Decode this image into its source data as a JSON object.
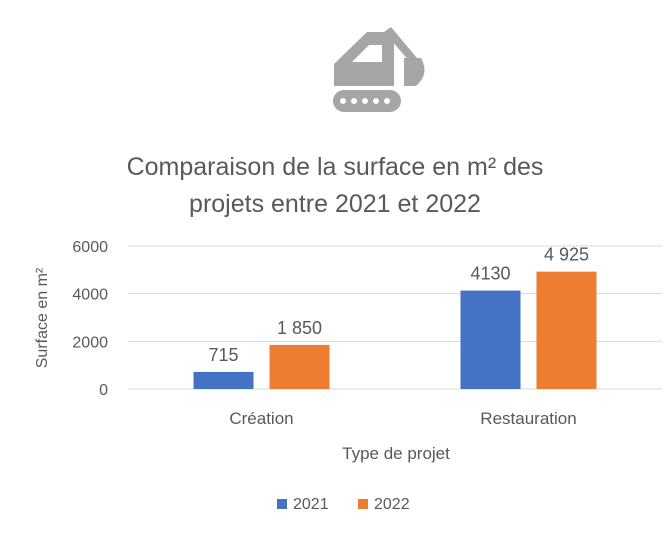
{
  "icon": "excavator-icon",
  "chart_data": {
    "type": "bar",
    "title_line1": "Comparaison de la surface en m² des",
    "title_line2": "projets entre 2021 et 2022",
    "xlabel": "Type de projet",
    "ylabel": "Surface en m²",
    "categories": [
      "Création",
      "Restauration"
    ],
    "series": [
      {
        "name": "2021",
        "values": [
          715,
          4130
        ],
        "labels": [
          "715",
          "4130"
        ],
        "color": "#4472C4"
      },
      {
        "name": "2022",
        "values": [
          1850,
          4925
        ],
        "labels": [
          "1 850",
          "4 925"
        ],
        "color": "#ED7D31"
      }
    ],
    "ylim": [
      0,
      6000
    ],
    "yticks": [
      "0",
      "2000",
      "4000",
      "6000"
    ],
    "grid": true,
    "legend_position": "bottom",
    "colors": {
      "text": "#595959",
      "grid": "#D9D9D9",
      "icon": "#A6A6A6"
    }
  }
}
